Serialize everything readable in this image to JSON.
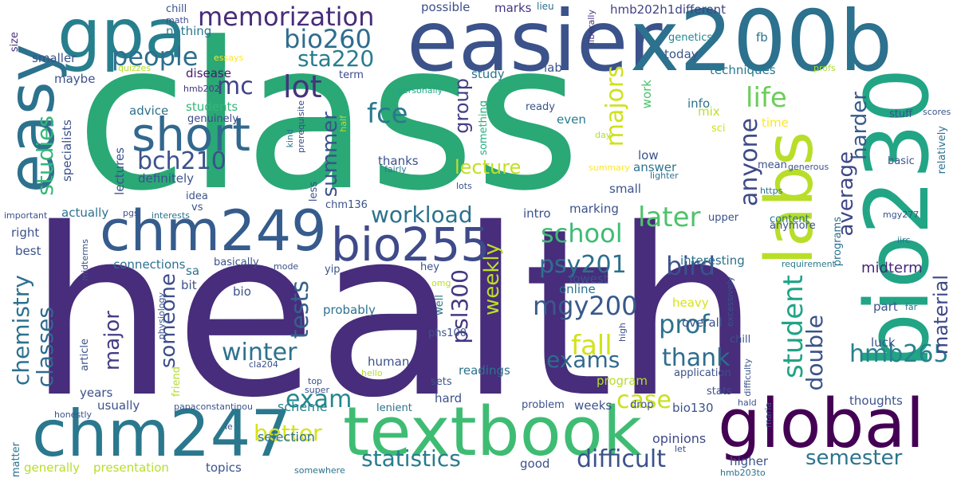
{
  "words": [
    {
      "t": "health",
      "c": "#472d7b"
    },
    {
      "t": "class",
      "c": "#2aa876"
    },
    {
      "t": "easier",
      "c": "#3b528b"
    },
    {
      "t": "x200b",
      "c": "#2c718e"
    },
    {
      "t": "bio230",
      "c": "#21a585"
    },
    {
      "t": "labs",
      "c": "#b8de29"
    },
    {
      "t": "gpa",
      "c": "#277f8e"
    },
    {
      "t": "easy",
      "c": "#2c728e"
    },
    {
      "t": "textbook",
      "c": "#3fbc73"
    },
    {
      "t": "global",
      "c": "#440154"
    },
    {
      "t": "chm247",
      "c": "#2a788e"
    },
    {
      "t": "chm249",
      "c": "#365c8d"
    },
    {
      "t": "bio255",
      "c": "#3e4a89"
    },
    {
      "t": "short",
      "c": "#31688e"
    },
    {
      "t": "memorization",
      "c": "#472c7a"
    },
    {
      "t": "bio260",
      "c": "#2f6c8e"
    },
    {
      "t": "sta220",
      "c": "#287d8e"
    },
    {
      "t": "people",
      "c": "#2e6e8e"
    },
    {
      "t": "mc",
      "c": "#414487"
    },
    {
      "t": "lot",
      "c": "#46327e"
    },
    {
      "t": "bch210",
      "c": "#3b528b"
    },
    {
      "t": "fce",
      "c": "#2a788e"
    },
    {
      "t": "studies",
      "c": "#35b779"
    },
    {
      "t": "summer",
      "c": "#3b528b"
    },
    {
      "t": "group",
      "c": "#433e85"
    },
    {
      "t": "lecture",
      "c": "#c2df23"
    },
    {
      "t": "majors",
      "c": "#d0e11c"
    },
    {
      "t": "life",
      "c": "#6ccd5a"
    },
    {
      "t": "anyone",
      "c": "#3e4a89"
    },
    {
      "t": "harder",
      "c": "#38598c"
    },
    {
      "t": "average",
      "c": "#3f4788"
    },
    {
      "t": "workload",
      "c": "#2c728e"
    },
    {
      "t": "school",
      "c": "#3dbc74"
    },
    {
      "t": "later",
      "c": "#4ec36b"
    },
    {
      "t": "bird",
      "c": "#3b528b"
    },
    {
      "t": "psy201",
      "c": "#2d708e"
    },
    {
      "t": "chemistry",
      "c": "#2c728e"
    },
    {
      "t": "classes",
      "c": "#306a8e"
    },
    {
      "t": "major",
      "c": "#433d84"
    },
    {
      "t": "someone",
      "c": "#3d4e8a"
    },
    {
      "t": "tests",
      "c": "#34618d"
    },
    {
      "t": "psl300",
      "c": "#453781"
    },
    {
      "t": "weekly",
      "c": "#bade28"
    },
    {
      "t": "mgy200",
      "c": "#38598c"
    },
    {
      "t": "prof",
      "c": "#2c728e"
    },
    {
      "t": "fall",
      "c": "#d2e21b"
    },
    {
      "t": "thank",
      "c": "#2e6d8e"
    },
    {
      "t": "exams",
      "c": "#306a8e"
    },
    {
      "t": "winter",
      "c": "#2c728e"
    },
    {
      "t": "student",
      "c": "#20a386"
    },
    {
      "t": "double",
      "c": "#3b528b"
    },
    {
      "t": "hmb265",
      "c": "#26828e"
    },
    {
      "t": "material",
      "c": "#3e4989"
    },
    {
      "t": "exam",
      "c": "#23888e"
    },
    {
      "t": "better",
      "c": "#d8e219"
    },
    {
      "t": "case",
      "c": "#c8e020"
    },
    {
      "t": "statistics",
      "c": "#287c8e"
    },
    {
      "t": "difficult",
      "c": "#3b528b"
    },
    {
      "t": "semester",
      "c": "#2b758e"
    },
    {
      "t": "midterm",
      "c": "#472878"
    },
    {
      "t": "selection",
      "c": "#2c728e"
    },
    {
      "t": "scheme",
      "c": "#25848e"
    },
    {
      "t": "opinions",
      "c": "#3e4a89"
    },
    {
      "t": "possible",
      "c": "#3c4f8a"
    },
    {
      "t": "marks",
      "c": "#453581"
    },
    {
      "t": "lieu",
      "c": "#2d708e"
    },
    {
      "t": "hmb202h1different",
      "c": "#414287"
    },
    {
      "t": "fb",
      "c": "#2d708e"
    },
    {
      "t": "genetics",
      "c": "#25858e"
    },
    {
      "t": "today",
      "c": "#3a548c"
    },
    {
      "t": "techniques",
      "c": "#2a778e"
    },
    {
      "t": "liberally",
      "c": "#46307e"
    },
    {
      "t": "chill",
      "c": "#3b528b"
    },
    {
      "t": "math",
      "c": "#3d4e8a"
    },
    {
      "t": "nothing",
      "c": "#2a788e"
    },
    {
      "t": "essays",
      "c": "#fde725"
    },
    {
      "t": "quizzes",
      "c": "#b5de2b"
    },
    {
      "t": "smaller",
      "c": "#3b528b"
    },
    {
      "t": "maybe",
      "c": "#3b528b"
    },
    {
      "t": "disease",
      "c": "#481a6c"
    },
    {
      "t": "hmb202",
      "c": "#453781"
    },
    {
      "t": "term",
      "c": "#3e4a89"
    },
    {
      "t": "personally",
      "c": "#21a685"
    },
    {
      "t": "profs",
      "c": "#a5db36"
    },
    {
      "t": "lab",
      "c": "#3b528b"
    },
    {
      "t": "work",
      "c": "#4ac16d"
    },
    {
      "t": "study",
      "c": "#2b748e"
    },
    {
      "t": "advice",
      "c": "#2d708e"
    },
    {
      "t": "students",
      "c": "#35b779"
    },
    {
      "t": "genuinely",
      "c": "#3e4a89"
    },
    {
      "t": "prerequisite",
      "c": "#3d4e8a"
    },
    {
      "t": "something",
      "c": "#29af7f"
    },
    {
      "t": "ready",
      "c": "#3b528b"
    },
    {
      "t": "info",
      "c": "#2c728e"
    },
    {
      "t": "mix",
      "c": "#bddf26"
    },
    {
      "t": "even",
      "c": "#287c8e"
    },
    {
      "t": "time",
      "c": "#fde725"
    },
    {
      "t": "sci",
      "c": "#cde11d"
    },
    {
      "t": "stuff",
      "c": "#3b528b"
    },
    {
      "t": "scores",
      "c": "#3b528b"
    },
    {
      "t": "relatively",
      "c": "#2c728e"
    },
    {
      "t": "basic",
      "c": "#3b528b"
    },
    {
      "t": "mean",
      "c": "#3b528b"
    },
    {
      "t": "generous",
      "c": "#3b528b"
    },
    {
      "t": "https",
      "c": "#2c728e"
    },
    {
      "t": "mgy277",
      "c": "#3b528b"
    },
    {
      "t": "upper",
      "c": "#3b528b"
    },
    {
      "t": "iirc",
      "c": "#2a788e"
    },
    {
      "t": "requirement",
      "c": "#2a788e"
    },
    {
      "t": "anymore",
      "c": "#3b528b"
    },
    {
      "t": "content",
      "c": "#2c728e"
    },
    {
      "t": "programs",
      "c": "#2c728e"
    },
    {
      "t": "size",
      "c": "#472d7b"
    },
    {
      "t": "specialists",
      "c": "#3b528b"
    },
    {
      "t": "lectures",
      "c": "#3b528b"
    },
    {
      "t": "kind",
      "c": "#2a788e"
    },
    {
      "t": "half",
      "c": "#b5de2b"
    },
    {
      "t": "day",
      "c": "#b5de2b"
    },
    {
      "t": "summary",
      "c": "#fde725"
    },
    {
      "t": "lighter",
      "c": "#2c728e"
    },
    {
      "t": "thanks",
      "c": "#3b528b"
    },
    {
      "t": "fairly",
      "c": "#2a788e"
    },
    {
      "t": "less",
      "c": "#3b528b"
    },
    {
      "t": "lots",
      "c": "#3b528b"
    },
    {
      "t": "low",
      "c": "#3b528b"
    },
    {
      "t": "answer",
      "c": "#2c728e"
    },
    {
      "t": "small",
      "c": "#3b528b"
    },
    {
      "t": "definitely",
      "c": "#3b528b"
    },
    {
      "t": "idea",
      "c": "#3b528b"
    },
    {
      "t": "vs",
      "c": "#3b528b"
    },
    {
      "t": "important",
      "c": "#3b528b"
    },
    {
      "t": "actually",
      "c": "#2c728e"
    },
    {
      "t": "pgs",
      "c": "#3b528b"
    },
    {
      "t": "interests",
      "c": "#2c728e"
    },
    {
      "t": "chm136",
      "c": "#3b528b"
    },
    {
      "t": "intro",
      "c": "#3b528b"
    },
    {
      "t": "marking",
      "c": "#3b528b"
    },
    {
      "t": "right",
      "c": "#3b528b"
    },
    {
      "t": "best",
      "c": "#3b528b"
    },
    {
      "t": "midterms",
      "c": "#3b528b"
    },
    {
      "t": "connections",
      "c": "#2c728e"
    },
    {
      "t": "sa",
      "c": "#2c728e"
    },
    {
      "t": "basically",
      "c": "#3b528b"
    },
    {
      "t": "mode",
      "c": "#3b528b"
    },
    {
      "t": "yip",
      "c": "#3b528b"
    },
    {
      "t": "hey",
      "c": "#3b528b"
    },
    {
      "t": "omg",
      "c": "#b5de2b"
    },
    {
      "t": "interesting",
      "c": "#2c728e"
    },
    {
      "t": "lowest",
      "c": "#3b528b"
    },
    {
      "t": "online",
      "c": "#2c728e"
    },
    {
      "t": "bit",
      "c": "#3b528b"
    },
    {
      "t": "bio",
      "c": "#3b528b"
    },
    {
      "t": "physiology",
      "c": "#3b528b"
    },
    {
      "t": "probably",
      "c": "#2c728e"
    },
    {
      "t": "well",
      "c": "#2c728e"
    },
    {
      "t": "heavy",
      "c": "#d8e219"
    },
    {
      "t": "part",
      "c": "#3b528b"
    },
    {
      "t": "excessively",
      "c": "#3b528b"
    },
    {
      "t": "far",
      "c": "#2c728e"
    },
    {
      "t": "overall",
      "c": "#3b528b"
    },
    {
      "t": "chill2",
      "c": "#3b528b"
    },
    {
      "t": "high",
      "c": "#3b528b"
    },
    {
      "t": "luck",
      "c": "#3b528b"
    },
    {
      "t": "difficulty",
      "c": "#3b528b"
    },
    {
      "t": "article",
      "c": "#3b528b"
    },
    {
      "t": "friend",
      "c": "#b5de2b"
    },
    {
      "t": "phs100",
      "c": "#3b528b"
    },
    {
      "t": "cla204",
      "c": "#3b528b"
    },
    {
      "t": "hello",
      "c": "#b5de2b"
    },
    {
      "t": "human",
      "c": "#3b528b"
    },
    {
      "t": "readings",
      "c": "#2c728e"
    },
    {
      "t": "application",
      "c": "#3b528b"
    },
    {
      "t": "stats",
      "c": "#3b528b"
    },
    {
      "t": "years",
      "c": "#3b528b"
    },
    {
      "t": "top",
      "c": "#3b528b"
    },
    {
      "t": "super",
      "c": "#3b528b"
    },
    {
      "t": "sets",
      "c": "#3b528b"
    },
    {
      "t": "program",
      "c": "#b5de2b"
    },
    {
      "t": "usually",
      "c": "#3b528b"
    },
    {
      "t": "honestly",
      "c": "#3b528b"
    },
    {
      "t": "papaconstantinou",
      "c": "#3b528b"
    },
    {
      "t": "hard",
      "c": "#3b528b"
    },
    {
      "t": "lenient",
      "c": "#2c728e"
    },
    {
      "t": "weeks",
      "c": "#3b528b"
    },
    {
      "t": "bio130",
      "c": "#3b528b"
    },
    {
      "t": "drop",
      "c": "#3b528b"
    },
    {
      "t": "thoughts",
      "c": "#3b528b"
    },
    {
      "t": "hald",
      "c": "#3b528b"
    },
    {
      "t": "maria",
      "c": "#3b528b"
    },
    {
      "t": "ie",
      "c": "#3b528b"
    },
    {
      "t": "matter",
      "c": "#2c728e"
    },
    {
      "t": "problem",
      "c": "#3b528b"
    },
    {
      "t": "topics",
      "c": "#3b528b"
    },
    {
      "t": "let",
      "c": "#3b528b"
    },
    {
      "t": "higher",
      "c": "#3b528b"
    },
    {
      "t": "good",
      "c": "#3b528b"
    },
    {
      "t": "generally",
      "c": "#b5de2b"
    },
    {
      "t": "presentation",
      "c": "#b5de2b"
    },
    {
      "t": "somewhere",
      "c": "#2c728e"
    },
    {
      "t": "hmb203to",
      "c": "#2c728e"
    }
  ]
}
